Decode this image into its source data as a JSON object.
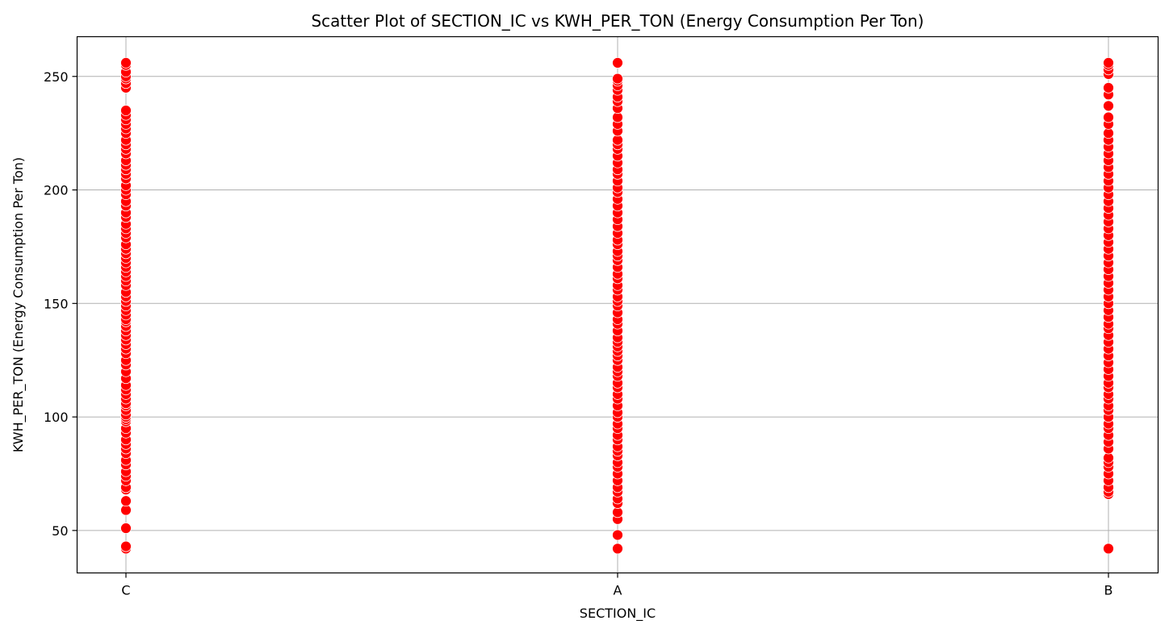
{
  "chart_data": {
    "type": "scatter",
    "title": "Scatter Plot of SECTION_IC vs KWH_PER_TON (Energy Consumption Per Ton)",
    "xlabel": "SECTION_IC",
    "ylabel": "KWH_PER_TON (Energy Consumption Per Ton)",
    "categories": [
      "C",
      "A",
      "B"
    ],
    "yticks": [
      50,
      100,
      150,
      200,
      250
    ],
    "ylim": [
      31.3,
      267.5
    ],
    "grid": true,
    "point_color": "#ff0000",
    "series": [
      {
        "category": "C",
        "values": [
          42,
          43,
          51,
          59,
          63,
          68,
          69,
          72,
          74,
          76,
          79,
          81,
          84,
          86,
          88,
          90,
          93,
          95,
          98,
          99,
          100,
          101,
          103,
          105,
          106,
          108,
          110,
          112,
          114,
          117,
          120,
          123,
          125,
          128,
          130,
          132,
          134,
          136,
          138,
          140,
          142,
          143,
          145,
          147,
          149,
          151,
          153,
          155,
          158,
          160,
          162,
          164,
          166,
          168,
          170,
          172,
          174,
          176,
          179,
          181,
          183,
          185,
          188,
          190,
          193,
          195,
          198,
          200,
          202,
          205,
          207,
          209,
          211,
          213,
          216,
          218,
          220,
          222,
          225,
          227,
          229,
          231,
          233,
          235,
          245,
          247,
          249,
          250,
          252,
          255,
          256
        ]
      },
      {
        "category": "A",
        "values": [
          42,
          48,
          55,
          58,
          62,
          64,
          67,
          69,
          72,
          75,
          78,
          80,
          83,
          85,
          87,
          90,
          92,
          95,
          97,
          100,
          102,
          105,
          108,
          110,
          113,
          115,
          118,
          120,
          122,
          125,
          127,
          129,
          131,
          133,
          135,
          138,
          141,
          143,
          146,
          149,
          151,
          153,
          156,
          158,
          161,
          163,
          166,
          169,
          171,
          173,
          176,
          178,
          181,
          184,
          187,
          190,
          193,
          196,
          199,
          201,
          204,
          207,
          209,
          212,
          215,
          218,
          220,
          222,
          226,
          229,
          232,
          236,
          239,
          241,
          244,
          246,
          248,
          249,
          256
        ]
      },
      {
        "category": "B",
        "values": [
          42,
          66,
          67,
          69,
          72,
          75,
          78,
          80,
          82,
          86,
          89,
          92,
          95,
          97,
          100,
          103,
          105,
          108,
          110,
          113,
          115,
          118,
          121,
          124,
          127,
          130,
          133,
          136,
          139,
          141,
          144,
          147,
          150,
          153,
          156,
          159,
          162,
          165,
          168,
          171,
          174,
          177,
          180,
          183,
          186,
          189,
          192,
          195,
          198,
          201,
          204,
          207,
          210,
          213,
          216,
          219,
          222,
          225,
          229,
          232,
          237,
          242,
          245,
          251,
          253,
          255,
          256
        ]
      }
    ]
  }
}
